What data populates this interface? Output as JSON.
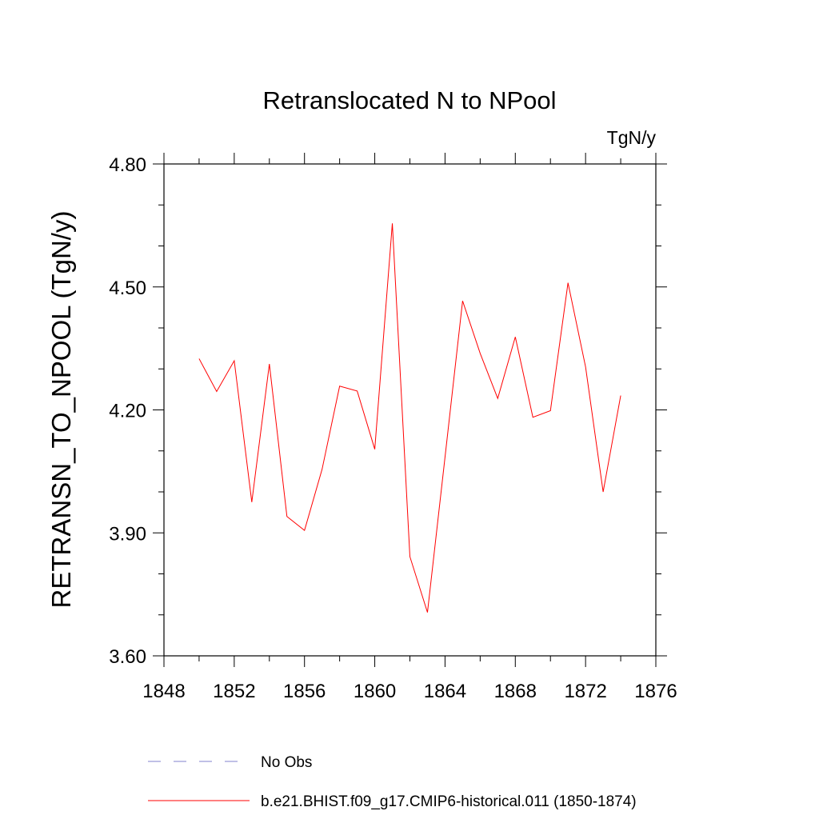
{
  "chart_data": {
    "type": "line",
    "title": "Retranslocated N to NPool",
    "units_label": "TgN/y",
    "xlabel": "",
    "ylabel": "RETRANSN_TO_NPOOL  (TgN/y)",
    "xlim": [
      1848,
      1876
    ],
    "ylim": [
      3.6,
      4.8
    ],
    "x_ticks": [
      1848,
      1852,
      1856,
      1860,
      1864,
      1868,
      1872,
      1876
    ],
    "x_tick_labels": [
      "1848",
      "1852",
      "1856",
      "1860",
      "1864",
      "1868",
      "1872",
      "1876"
    ],
    "y_ticks": [
      3.6,
      3.9,
      4.2,
      4.5,
      4.8
    ],
    "y_tick_labels": [
      "3.60",
      "3.90",
      "4.20",
      "4.50",
      "4.80"
    ],
    "grid": false,
    "legend_position": "bottom",
    "series": [
      {
        "name": "b.e21.BHIST.f09_g17.CMIP6-historical.011 (1850-1874)",
        "color": "#ff0000",
        "style": "solid",
        "x": [
          1850,
          1851,
          1852,
          1853,
          1854,
          1855,
          1856,
          1857,
          1858,
          1859,
          1860,
          1861,
          1862,
          1863,
          1864,
          1865,
          1866,
          1867,
          1868,
          1869,
          1870,
          1871,
          1872,
          1873,
          1874
        ],
        "y": [
          4.325,
          4.245,
          4.32,
          3.975,
          4.312,
          3.94,
          3.906,
          4.055,
          4.258,
          4.246,
          4.104,
          4.655,
          3.842,
          3.706,
          4.085,
          4.466,
          4.338,
          4.228,
          4.378,
          4.182,
          4.198,
          4.51,
          4.305,
          4.0,
          4.235
        ]
      }
    ],
    "legend": [
      {
        "label": "No Obs",
        "color": "#8080cc",
        "style": "dashed"
      },
      {
        "label": "b.e21.BHIST.f09_g17.CMIP6-historical.011 (1850-1874)",
        "color": "#ff0000",
        "style": "solid"
      }
    ]
  }
}
